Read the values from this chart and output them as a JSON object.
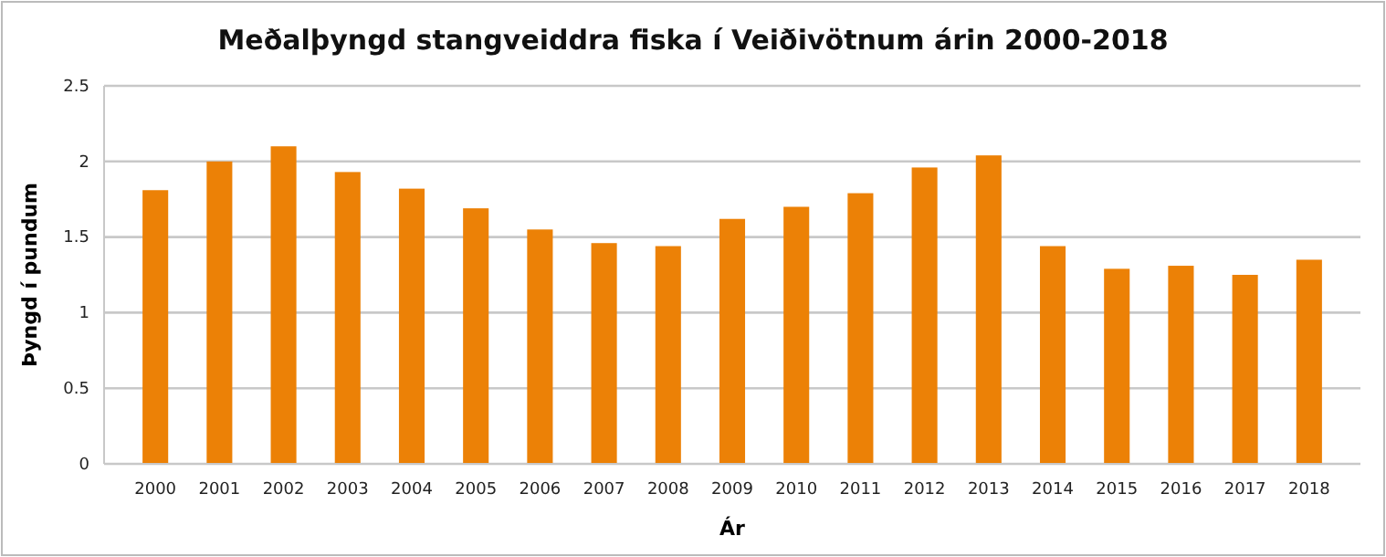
{
  "chart_data": {
    "type": "bar",
    "title": "Meðalþyngd stangveiddra fiska í Veiðivötnum árin 2000-2018",
    "xlabel": "Ár",
    "ylabel": "Þyngd í pundum",
    "categories": [
      "2000",
      "2001",
      "2002",
      "2003",
      "2004",
      "2005",
      "2006",
      "2007",
      "2008",
      "2009",
      "2010",
      "2011",
      "2012",
      "2013",
      "2014",
      "2015",
      "2016",
      "2017",
      "2018"
    ],
    "values": [
      1.81,
      2.0,
      2.1,
      1.93,
      1.82,
      1.69,
      1.55,
      1.46,
      1.44,
      1.62,
      1.7,
      1.79,
      1.96,
      2.04,
      1.44,
      1.29,
      1.31,
      1.25,
      1.35
    ],
    "color": "#ec8106",
    "ylim": [
      0,
      2.5
    ],
    "yticks": [
      0,
      0.5,
      1,
      1.5,
      2,
      2.5
    ],
    "grid": "y"
  }
}
